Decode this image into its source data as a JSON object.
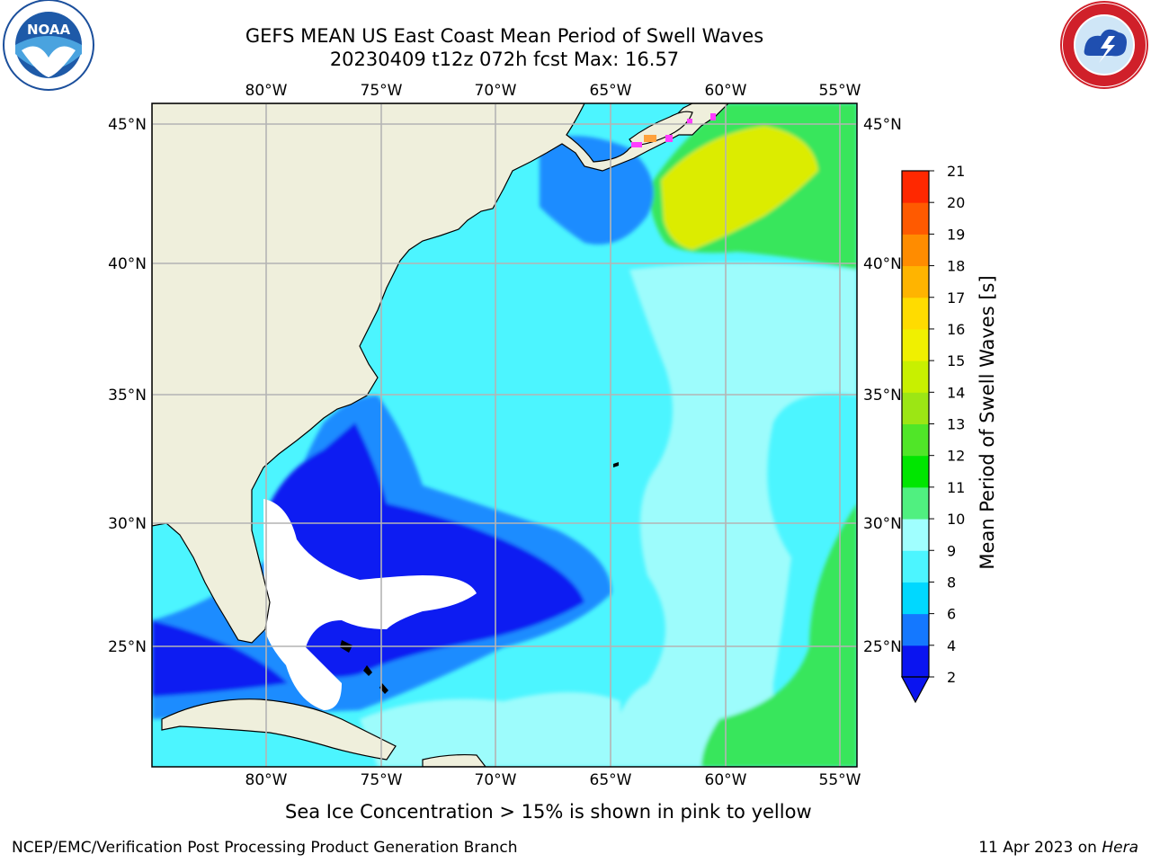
{
  "title": {
    "line1": "GEFS MEAN US East Coast Mean Period of Swell Waves",
    "line2": "20230409 t12z 072h fcst   Max: 16.57"
  },
  "map": {
    "lon_labels": [
      "80°W",
      "75°W",
      "70°W",
      "65°W",
      "60°W",
      "55°W"
    ],
    "lat_labels": [
      "45°N",
      "40°N",
      "35°N",
      "30°N",
      "25°N"
    ],
    "colors": {
      "land": "#efefdc",
      "grid": "#b4b4b4",
      "ocean_light": "#9dfcfc",
      "ocean_cyan": "#4cf5ff",
      "ocean_blue": "#1b8cff",
      "ocean_deep": "#0d1bf2",
      "green": "#39e65c",
      "yellow": "#dcec00"
    }
  },
  "colorbar": {
    "label": "Mean Period of Swell Waves [s]",
    "ticks": [
      "2",
      "4",
      "6",
      "8",
      "9",
      "10",
      "11",
      "12",
      "13",
      "14",
      "15",
      "16",
      "17",
      "18",
      "19",
      "20",
      "21"
    ],
    "colors": [
      "#0a14f0",
      "#1478ff",
      "#00d8ff",
      "#4cf5ff",
      "#a0ffff",
      "#50f080",
      "#00e600",
      "#50e628",
      "#9ce614",
      "#c8f000",
      "#f0f000",
      "#ffdc00",
      "#ffb400",
      "#ff8c00",
      "#ff5a00",
      "#ff2800"
    ]
  },
  "note": "Sea Ice Concentration > 15% is shown in pink to yellow",
  "footer": {
    "credit": "NCEP/EMC/Verification Post Processing Product Generation Branch",
    "date": "11 Apr 2023 on",
    "machine": "Hera"
  },
  "logos": {
    "left": {
      "icon": "noaa-logo-icon",
      "text": "NOAA"
    },
    "right": {
      "icon": "nws-logo-icon"
    }
  }
}
